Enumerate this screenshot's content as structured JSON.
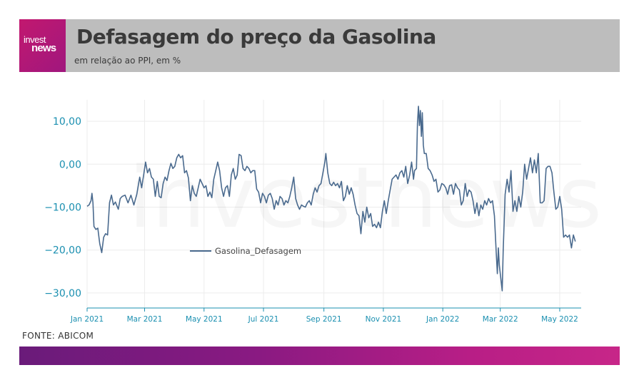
{
  "brand": {
    "logo_line1": "invest",
    "logo_line2": "news",
    "accent_color": "#c2186f"
  },
  "header": {
    "title": "Defasagem do preço da Gasolina",
    "subtitle": "em relação ao PPI, em %"
  },
  "footer": {
    "source": "FONTE: ABICOM"
  },
  "watermark": "investnews",
  "chart_data": {
    "type": "line",
    "title": "",
    "xlabel": "",
    "ylabel": "",
    "x_ticks": [
      "Jan 2021",
      "Mar 2021",
      "May 2021",
      "Jul 2021",
      "Sep 2021",
      "Nov 2021",
      "Jan 2022",
      "Mar 2022",
      "May 2022"
    ],
    "y_ticks": [
      "10,00",
      "0,00",
      "−10,00",
      "−20,00",
      "−30,00"
    ],
    "y_tick_values": [
      10,
      0,
      -10,
      -20,
      -30
    ],
    "ylim": [
      -33.5,
      15
    ],
    "xlim": [
      "2021-01-01",
      "2022-05-23"
    ],
    "grid": true,
    "legend_position": "middle-left",
    "series": [
      {
        "name": "Gasolina_Defasagem",
        "color": "#4a6a8e",
        "points": [
          [
            "2021-01-01",
            -9.8
          ],
          [
            "2021-01-03",
            -9.5
          ],
          [
            "2021-01-05",
            -8.5
          ],
          [
            "2021-01-06",
            -6.8
          ],
          [
            "2021-01-07",
            -9.0
          ],
          [
            "2021-01-08",
            -14.5
          ],
          [
            "2021-01-10",
            -15.2
          ],
          [
            "2021-01-12",
            -14.9
          ],
          [
            "2021-01-14",
            -18.5
          ],
          [
            "2021-01-16",
            -20.6
          ],
          [
            "2021-01-18",
            -17.0
          ],
          [
            "2021-01-20",
            -16.2
          ],
          [
            "2021-01-22",
            -16.5
          ],
          [
            "2021-01-24",
            -9.0
          ],
          [
            "2021-01-26",
            -7.2
          ],
          [
            "2021-01-28",
            -9.5
          ],
          [
            "2021-01-30",
            -8.8
          ],
          [
            "2021-02-02",
            -10.5
          ],
          [
            "2021-02-04",
            -8.0
          ],
          [
            "2021-02-06",
            -7.5
          ],
          [
            "2021-02-09",
            -7.2
          ],
          [
            "2021-02-12",
            -9.0
          ],
          [
            "2021-02-15",
            -7.2
          ],
          [
            "2021-02-18",
            -9.5
          ],
          [
            "2021-02-21",
            -7.0
          ],
          [
            "2021-02-24",
            -3.0
          ],
          [
            "2021-02-26",
            -5.5
          ],
          [
            "2021-02-28",
            -2.5
          ],
          [
            "2021-03-02",
            0.5
          ],
          [
            "2021-03-04",
            -2.0
          ],
          [
            "2021-03-06",
            -1.0
          ],
          [
            "2021-03-08",
            -3.0
          ],
          [
            "2021-03-10",
            -3.5
          ],
          [
            "2021-03-12",
            -7.5
          ],
          [
            "2021-03-14",
            -4.0
          ],
          [
            "2021-03-16",
            -7.5
          ],
          [
            "2021-03-18",
            -7.8
          ],
          [
            "2021-03-20",
            -4.5
          ],
          [
            "2021-03-22",
            -3.0
          ],
          [
            "2021-03-24",
            -3.8
          ],
          [
            "2021-03-26",
            -1.5
          ],
          [
            "2021-03-28",
            0.2
          ],
          [
            "2021-03-30",
            -1.0
          ],
          [
            "2021-04-01",
            -0.5
          ],
          [
            "2021-04-03",
            1.5
          ],
          [
            "2021-04-05",
            2.3
          ],
          [
            "2021-04-07",
            1.5
          ],
          [
            "2021-04-09",
            2.0
          ],
          [
            "2021-04-11",
            -2.0
          ],
          [
            "2021-04-13",
            -1.5
          ],
          [
            "2021-04-15",
            -3.2
          ],
          [
            "2021-04-17",
            -8.5
          ],
          [
            "2021-04-19",
            -5.0
          ],
          [
            "2021-04-21",
            -6.8
          ],
          [
            "2021-04-23",
            -7.5
          ],
          [
            "2021-04-25",
            -5.5
          ],
          [
            "2021-04-27",
            -3.5
          ],
          [
            "2021-04-29",
            -4.5
          ],
          [
            "2021-05-01",
            -5.5
          ],
          [
            "2021-05-03",
            -5.0
          ],
          [
            "2021-05-05",
            -7.5
          ],
          [
            "2021-05-07",
            -6.5
          ],
          [
            "2021-05-09",
            -7.8
          ],
          [
            "2021-05-11",
            -3.5
          ],
          [
            "2021-05-13",
            -1.5
          ],
          [
            "2021-05-15",
            0.5
          ],
          [
            "2021-05-17",
            -1.5
          ],
          [
            "2021-05-19",
            -5.5
          ],
          [
            "2021-05-21",
            -7.5
          ],
          [
            "2021-05-23",
            -5.5
          ],
          [
            "2021-05-25",
            -5.0
          ],
          [
            "2021-05-27",
            -7.5
          ],
          [
            "2021-05-29",
            -2.5
          ],
          [
            "2021-05-31",
            -1.0
          ],
          [
            "2021-06-02",
            -3.5
          ],
          [
            "2021-06-04",
            -2.5
          ],
          [
            "2021-06-06",
            2.3
          ],
          [
            "2021-06-08",
            2.0
          ],
          [
            "2021-06-10",
            -1.0
          ],
          [
            "2021-06-12",
            -1.5
          ],
          [
            "2021-06-14",
            -0.5
          ],
          [
            "2021-06-16",
            -1.0
          ],
          [
            "2021-06-18",
            -2.0
          ],
          [
            "2021-06-20",
            -1.5
          ],
          [
            "2021-06-22",
            -1.5
          ],
          [
            "2021-06-24",
            -5.8
          ],
          [
            "2021-06-26",
            -6.5
          ],
          [
            "2021-06-28",
            -9.0
          ],
          [
            "2021-06-30",
            -6.8
          ],
          [
            "2021-07-02",
            -7.5
          ],
          [
            "2021-07-04",
            -9.0
          ],
          [
            "2021-07-06",
            -7.2
          ],
          [
            "2021-07-08",
            -6.8
          ],
          [
            "2021-07-10",
            -8.0
          ],
          [
            "2021-07-12",
            -10.5
          ],
          [
            "2021-07-14",
            -8.5
          ],
          [
            "2021-07-16",
            -9.5
          ],
          [
            "2021-07-18",
            -7.5
          ],
          [
            "2021-07-20",
            -8.0
          ],
          [
            "2021-07-22",
            -9.5
          ],
          [
            "2021-07-24",
            -8.5
          ],
          [
            "2021-07-26",
            -9.0
          ],
          [
            "2021-07-28",
            -7.5
          ],
          [
            "2021-07-30",
            -5.5
          ],
          [
            "2021-08-01",
            -3.0
          ],
          [
            "2021-08-03",
            -8.0
          ],
          [
            "2021-08-05",
            -9.5
          ],
          [
            "2021-08-07",
            -10.5
          ],
          [
            "2021-08-09",
            -9.5
          ],
          [
            "2021-08-11",
            -9.8
          ],
          [
            "2021-08-13",
            -10.0
          ],
          [
            "2021-08-15",
            -9.0
          ],
          [
            "2021-08-17",
            -8.5
          ],
          [
            "2021-08-19",
            -9.5
          ],
          [
            "2021-08-21",
            -7.0
          ],
          [
            "2021-08-23",
            -5.5
          ],
          [
            "2021-08-25",
            -6.5
          ],
          [
            "2021-08-27",
            -5.0
          ],
          [
            "2021-08-29",
            -4.5
          ],
          [
            "2021-08-31",
            -2.0
          ],
          [
            "2021-09-02",
            0.5
          ],
          [
            "2021-09-03",
            2.5
          ],
          [
            "2021-09-05",
            -2.0
          ],
          [
            "2021-09-07",
            -4.5
          ],
          [
            "2021-09-09",
            -5.0
          ],
          [
            "2021-09-11",
            -4.2
          ],
          [
            "2021-09-13",
            -5.0
          ],
          [
            "2021-09-15",
            -4.5
          ],
          [
            "2021-09-17",
            -5.5
          ],
          [
            "2021-09-19",
            -4.0
          ],
          [
            "2021-09-21",
            -8.5
          ],
          [
            "2021-09-23",
            -7.5
          ],
          [
            "2021-09-25",
            -5.0
          ],
          [
            "2021-09-27",
            -7.0
          ],
          [
            "2021-09-29",
            -5.5
          ],
          [
            "2021-10-01",
            -7.0
          ],
          [
            "2021-10-03",
            -9.5
          ],
          [
            "2021-10-05",
            -11.5
          ],
          [
            "2021-10-07",
            -12.0
          ],
          [
            "2021-10-09",
            -16.2
          ],
          [
            "2021-10-11",
            -11.0
          ],
          [
            "2021-10-13",
            -13.5
          ],
          [
            "2021-10-15",
            -10.0
          ],
          [
            "2021-10-17",
            -12.5
          ],
          [
            "2021-10-19",
            -11.5
          ],
          [
            "2021-10-21",
            -14.5
          ],
          [
            "2021-10-23",
            -14.0
          ],
          [
            "2021-10-25",
            -14.8
          ],
          [
            "2021-10-27",
            -13.5
          ],
          [
            "2021-10-29",
            -14.8
          ],
          [
            "2021-10-31",
            -11.0
          ],
          [
            "2021-11-02",
            -8.5
          ],
          [
            "2021-11-04",
            -11.5
          ],
          [
            "2021-11-06",
            -8.5
          ],
          [
            "2021-11-08",
            -6.0
          ],
          [
            "2021-11-10",
            -3.5
          ],
          [
            "2021-11-12",
            -3.0
          ],
          [
            "2021-11-14",
            -2.5
          ],
          [
            "2021-11-16",
            -3.5
          ],
          [
            "2021-11-18",
            -2.0
          ],
          [
            "2021-11-20",
            -1.5
          ],
          [
            "2021-11-22",
            -3.0
          ],
          [
            "2021-11-24",
            -0.5
          ],
          [
            "2021-11-26",
            -4.5
          ],
          [
            "2021-11-28",
            -2.5
          ],
          [
            "2021-11-30",
            0.5
          ],
          [
            "2021-12-02",
            -3.5
          ],
          [
            "2021-12-03",
            -1.5
          ],
          [
            "2021-12-05",
            -1.0
          ],
          [
            "2021-12-06",
            9.5
          ],
          [
            "2021-12-07",
            13.5
          ],
          [
            "2021-12-08",
            9.0
          ],
          [
            "2021-12-09",
            12.5
          ],
          [
            "2021-12-10",
            6.5
          ],
          [
            "2021-12-11",
            12.0
          ],
          [
            "2021-12-12",
            4.5
          ],
          [
            "2021-12-13",
            2.5
          ],
          [
            "2021-12-15",
            2.5
          ],
          [
            "2021-12-17",
            -1.0
          ],
          [
            "2021-12-19",
            -1.5
          ],
          [
            "2021-12-21",
            -2.5
          ],
          [
            "2021-12-23",
            -4.0
          ],
          [
            "2021-12-25",
            -3.5
          ],
          [
            "2021-12-27",
            -6.5
          ],
          [
            "2021-12-29",
            -6.0
          ],
          [
            "2021-12-31",
            -4.5
          ],
          [
            "2022-01-02",
            -4.8
          ],
          [
            "2022-01-04",
            -5.5
          ],
          [
            "2022-01-06",
            -7.0
          ],
          [
            "2022-01-08",
            -5.0
          ],
          [
            "2022-01-10",
            -4.8
          ],
          [
            "2022-01-12",
            -7.0
          ],
          [
            "2022-01-14",
            -4.5
          ],
          [
            "2022-01-16",
            -5.5
          ],
          [
            "2022-01-18",
            -6.0
          ],
          [
            "2022-01-20",
            -9.5
          ],
          [
            "2022-01-22",
            -8.5
          ],
          [
            "2022-01-24",
            -4.5
          ],
          [
            "2022-01-26",
            -7.5
          ],
          [
            "2022-01-28",
            -6.0
          ],
          [
            "2022-01-30",
            -6.5
          ],
          [
            "2022-02-01",
            -8.5
          ],
          [
            "2022-02-03",
            -11.5
          ],
          [
            "2022-02-05",
            -9.0
          ],
          [
            "2022-02-07",
            -12.0
          ],
          [
            "2022-02-09",
            -9.5
          ],
          [
            "2022-02-11",
            -10.5
          ],
          [
            "2022-02-13",
            -8.5
          ],
          [
            "2022-02-15",
            -9.5
          ],
          [
            "2022-02-17",
            -8.0
          ],
          [
            "2022-02-19",
            -9.0
          ],
          [
            "2022-02-21",
            -8.5
          ],
          [
            "2022-02-23",
            -12.0
          ],
          [
            "2022-02-25",
            -21.5
          ],
          [
            "2022-02-26",
            -25.5
          ],
          [
            "2022-02-27",
            -19.5
          ],
          [
            "2022-02-28",
            -23.5
          ],
          [
            "2022-03-02",
            -27.5
          ],
          [
            "2022-03-03",
            -29.5
          ],
          [
            "2022-03-04",
            -20.0
          ],
          [
            "2022-03-06",
            -7.0
          ],
          [
            "2022-03-08",
            -3.5
          ],
          [
            "2022-03-10",
            -6.5
          ],
          [
            "2022-03-12",
            -1.5
          ],
          [
            "2022-03-14",
            -11.0
          ],
          [
            "2022-03-16",
            -8.5
          ],
          [
            "2022-03-18",
            -11.0
          ],
          [
            "2022-03-20",
            -7.5
          ],
          [
            "2022-03-22",
            -10.0
          ],
          [
            "2022-03-24",
            -6.5
          ],
          [
            "2022-03-26",
            0.0
          ],
          [
            "2022-03-28",
            -3.5
          ],
          [
            "2022-03-30",
            -1.0
          ],
          [
            "2022-04-01",
            1.5
          ],
          [
            "2022-04-03",
            -2.0
          ],
          [
            "2022-04-05",
            1.0
          ],
          [
            "2022-04-07",
            -2.0
          ],
          [
            "2022-04-09",
            2.5
          ],
          [
            "2022-04-11",
            -9.0
          ],
          [
            "2022-04-13",
            -9.0
          ],
          [
            "2022-04-15",
            -8.5
          ],
          [
            "2022-04-17",
            -1.0
          ],
          [
            "2022-04-19",
            -0.5
          ],
          [
            "2022-04-21",
            -0.5
          ],
          [
            "2022-04-23",
            -2.0
          ],
          [
            "2022-04-25",
            -6.5
          ],
          [
            "2022-04-27",
            -10.5
          ],
          [
            "2022-04-29",
            -10.0
          ],
          [
            "2022-05-01",
            -7.5
          ],
          [
            "2022-05-03",
            -10.5
          ],
          [
            "2022-05-05",
            -17.0
          ],
          [
            "2022-05-07",
            -16.5
          ],
          [
            "2022-05-09",
            -17.0
          ],
          [
            "2022-05-11",
            -16.5
          ],
          [
            "2022-05-13",
            -19.5
          ],
          [
            "2022-05-15",
            -16.5
          ],
          [
            "2022-05-17",
            -18.0
          ]
        ]
      }
    ]
  }
}
